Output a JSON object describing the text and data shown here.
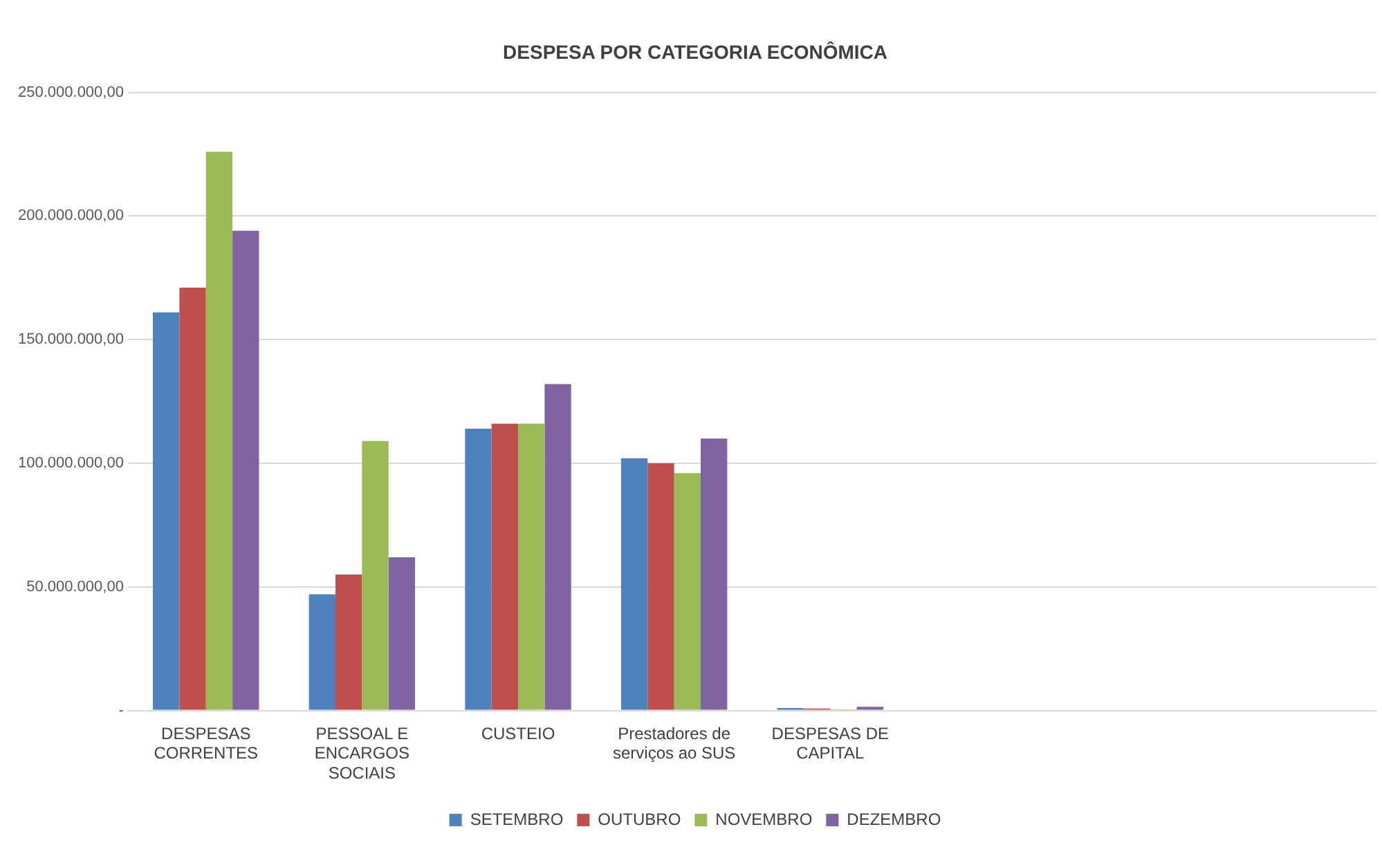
{
  "chart_data": {
    "type": "bar",
    "title": "DESPESA POR CATEGORIA ECONÔMICA",
    "categories": [
      "DESPESAS CORRENTES",
      "PESSOAL E ENCARGOS SOCIAIS",
      "CUSTEIO",
      "Prestadores de serviços ao SUS",
      "DESPESAS DE CAPITAL",
      null,
      null,
      null
    ],
    "series": [
      {
        "name": "SETEMBRO",
        "color": "#4f81bd",
        "values": [
          161000000,
          47000000,
          114000000,
          102000000,
          1000000,
          null,
          null,
          null
        ]
      },
      {
        "name": "OUTUBRO",
        "color": "#c0504d",
        "values": [
          171000000,
          55000000,
          116000000,
          100000000,
          800000,
          null,
          null,
          null
        ]
      },
      {
        "name": "NOVEMBRO",
        "color": "#9bbb59",
        "values": [
          226000000,
          109000000,
          116000000,
          96000000,
          500000,
          null,
          null,
          null
        ]
      },
      {
        "name": "DEZEMBRO",
        "color": "#8064a2",
        "values": [
          194000000,
          62000000,
          132000000,
          110000000,
          1500000,
          null,
          null,
          null
        ]
      }
    ],
    "ylim": [
      0,
      250000000
    ],
    "yticks": [
      {
        "value": 0,
        "label": "-"
      },
      {
        "value": 50000000,
        "label": "50.000.000,00"
      },
      {
        "value": 100000000,
        "label": "100.000.000,00"
      },
      {
        "value": 150000000,
        "label": "150.000.000,00"
      },
      {
        "value": 200000000,
        "label": "200.000.000,00"
      },
      {
        "value": 250000000,
        "label": "250.000.000,00"
      }
    ],
    "grid": "y",
    "legend": "bottom"
  }
}
